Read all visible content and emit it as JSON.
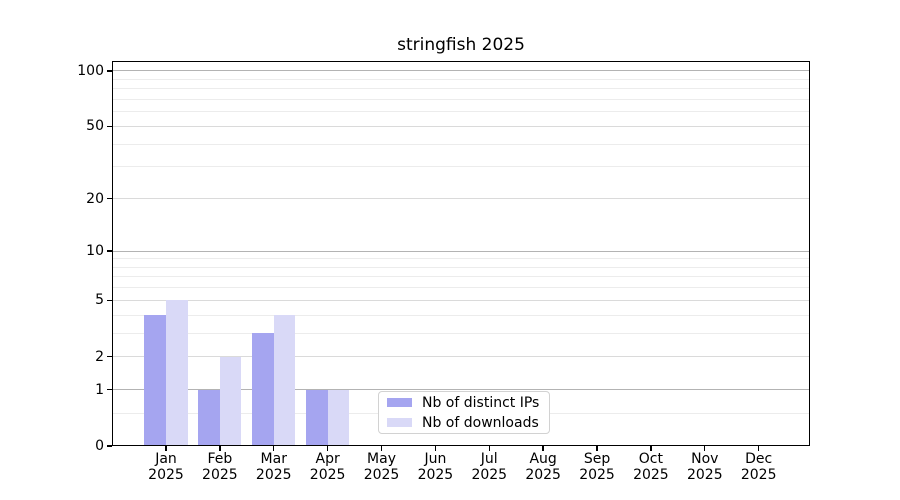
{
  "chart_data": {
    "type": "bar",
    "title": "stringfish 2025",
    "categories": [
      "Jan",
      "Feb",
      "Mar",
      "Apr",
      "May",
      "Jun",
      "Jul",
      "Aug",
      "Sep",
      "Oct",
      "Nov",
      "Dec"
    ],
    "x_year": "2025",
    "series": [
      {
        "name": "Nb of distinct IPs",
        "color": "#a5a5f0",
        "values": [
          4,
          1,
          3,
          1,
          0,
          0,
          0,
          0,
          0,
          0,
          0,
          0
        ]
      },
      {
        "name": "Nb of downloads",
        "color": "#d9d9f7",
        "values": [
          5,
          2,
          4,
          1,
          0,
          0,
          0,
          0,
          0,
          0,
          0,
          0
        ]
      }
    ],
    "xlabel": "",
    "ylabel": "",
    "yscale": "log1p",
    "ylim": [
      0,
      113
    ],
    "yticks_labeled": [
      0,
      1,
      2,
      5,
      10,
      20,
      50,
      100
    ],
    "yticks_major": [
      1,
      10,
      100
    ],
    "yticks_minor": [
      0.5,
      3,
      4,
      6,
      7,
      8,
      9,
      30,
      40,
      60,
      70,
      80,
      90
    ],
    "grid": true,
    "legend_position": "lower center",
    "colors": {
      "grid_major": "#b3b3b3",
      "grid_labeled": "#dadada",
      "grid_minor": "#ececec",
      "axis": "#000000",
      "background": "#ffffff"
    }
  }
}
